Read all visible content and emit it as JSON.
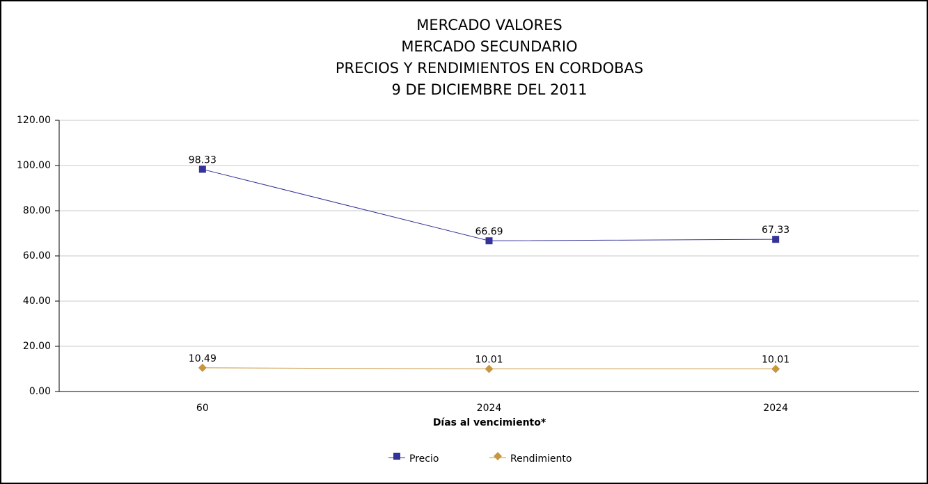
{
  "chart_data": {
    "type": "line",
    "title": [
      "MERCADO VALORES",
      "MERCADO SECUNDARIO",
      "PRECIOS Y RENDIMIENTOS EN CORDOBAS",
      "9 DE DICIEMBRE DEL 2011"
    ],
    "x_label": "Días al vencimiento*",
    "categories": [
      "60",
      "2024",
      "2024"
    ],
    "series": [
      {
        "name": "Precio",
        "color": "#333399",
        "marker": "square",
        "values": [
          98.33,
          66.69,
          67.33
        ]
      },
      {
        "name": "Rendimiento",
        "color": "#c8963e",
        "marker": "diamond",
        "values": [
          10.49,
          10.01,
          10.01
        ]
      }
    ],
    "ylim": [
      0,
      120
    ],
    "yticks": [
      {
        "value": 0,
        "label": "0.00"
      },
      {
        "value": 20,
        "label": "20.00"
      },
      {
        "value": 40,
        "label": "40.00"
      },
      {
        "value": 60,
        "label": "60.00"
      },
      {
        "value": 80,
        "label": "80.00"
      },
      {
        "value": 100,
        "label": "100.00"
      },
      {
        "value": 120,
        "label": "120.00"
      }
    ],
    "grid": true,
    "legend": "bottom"
  }
}
